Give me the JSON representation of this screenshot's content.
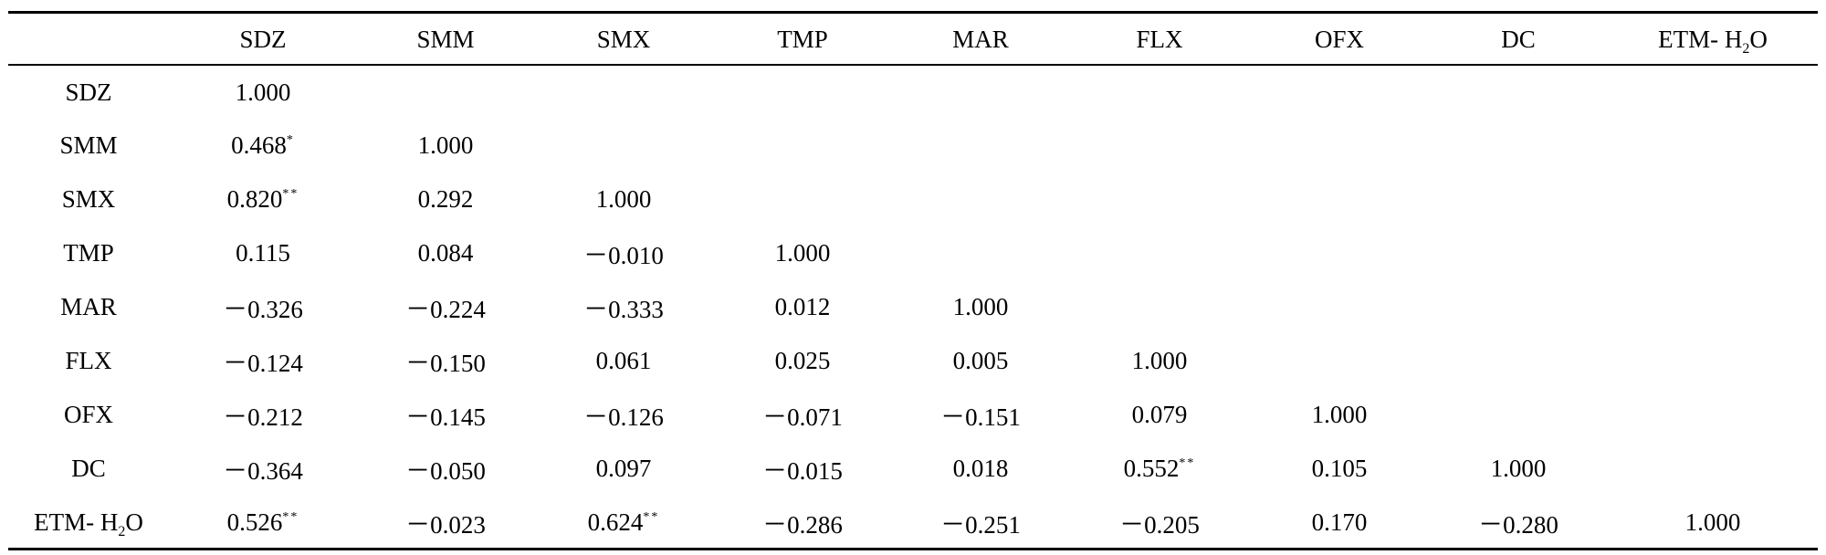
{
  "table": {
    "corner": "",
    "columns": [
      {
        "label": "SDZ",
        "sub": "",
        "tail": ""
      },
      {
        "label": "SMM",
        "sub": "",
        "tail": ""
      },
      {
        "label": "SMX",
        "sub": "",
        "tail": ""
      },
      {
        "label": "TMP",
        "sub": "",
        "tail": ""
      },
      {
        "label": "MAR",
        "sub": "",
        "tail": ""
      },
      {
        "label": "FLX",
        "sub": "",
        "tail": ""
      },
      {
        "label": "OFX",
        "sub": "",
        "tail": ""
      },
      {
        "label": "DC",
        "sub": "",
        "tail": ""
      },
      {
        "label": "ETM-   H",
        "sub": "2",
        "tail": "O"
      }
    ],
    "rows": [
      {
        "label": {
          "label": "SDZ",
          "sub": "",
          "tail": ""
        },
        "cells": [
          {
            "v": "1.000",
            "s": ""
          },
          {
            "v": "",
            "s": ""
          },
          {
            "v": "",
            "s": ""
          },
          {
            "v": "",
            "s": ""
          },
          {
            "v": "",
            "s": ""
          },
          {
            "v": "",
            "s": ""
          },
          {
            "v": "",
            "s": ""
          },
          {
            "v": "",
            "s": ""
          },
          {
            "v": "",
            "s": ""
          }
        ]
      },
      {
        "label": {
          "label": "SMM",
          "sub": "",
          "tail": ""
        },
        "cells": [
          {
            "v": "0.468",
            "s": "*"
          },
          {
            "v": "1.000",
            "s": ""
          },
          {
            "v": "",
            "s": ""
          },
          {
            "v": "",
            "s": ""
          },
          {
            "v": "",
            "s": ""
          },
          {
            "v": "",
            "s": ""
          },
          {
            "v": "",
            "s": ""
          },
          {
            "v": "",
            "s": ""
          },
          {
            "v": "",
            "s": ""
          }
        ]
      },
      {
        "label": {
          "label": "SMX",
          "sub": "",
          "tail": ""
        },
        "cells": [
          {
            "v": "0.820",
            "s": "**"
          },
          {
            "v": "0.292",
            "s": ""
          },
          {
            "v": "1.000",
            "s": ""
          },
          {
            "v": "",
            "s": ""
          },
          {
            "v": "",
            "s": ""
          },
          {
            "v": "",
            "s": ""
          },
          {
            "v": "",
            "s": ""
          },
          {
            "v": "",
            "s": ""
          },
          {
            "v": "",
            "s": ""
          }
        ]
      },
      {
        "label": {
          "label": "TMP",
          "sub": "",
          "tail": ""
        },
        "cells": [
          {
            "v": "0.115",
            "s": ""
          },
          {
            "v": "0.084",
            "s": ""
          },
          {
            "v": "－0.010",
            "s": ""
          },
          {
            "v": "1.000",
            "s": ""
          },
          {
            "v": "",
            "s": ""
          },
          {
            "v": "",
            "s": ""
          },
          {
            "v": "",
            "s": ""
          },
          {
            "v": "",
            "s": ""
          },
          {
            "v": "",
            "s": ""
          }
        ]
      },
      {
        "label": {
          "label": "MAR",
          "sub": "",
          "tail": ""
        },
        "cells": [
          {
            "v": "－0.326",
            "s": ""
          },
          {
            "v": "－0.224",
            "s": ""
          },
          {
            "v": "－0.333",
            "s": ""
          },
          {
            "v": "0.012",
            "s": ""
          },
          {
            "v": "1.000",
            "s": ""
          },
          {
            "v": "",
            "s": ""
          },
          {
            "v": "",
            "s": ""
          },
          {
            "v": "",
            "s": ""
          },
          {
            "v": "",
            "s": ""
          }
        ]
      },
      {
        "label": {
          "label": "FLX",
          "sub": "",
          "tail": ""
        },
        "cells": [
          {
            "v": "－0.124",
            "s": ""
          },
          {
            "v": "－0.150",
            "s": ""
          },
          {
            "v": "0.061",
            "s": ""
          },
          {
            "v": "0.025",
            "s": ""
          },
          {
            "v": "0.005",
            "s": ""
          },
          {
            "v": "1.000",
            "s": ""
          },
          {
            "v": "",
            "s": ""
          },
          {
            "v": "",
            "s": ""
          },
          {
            "v": "",
            "s": ""
          }
        ]
      },
      {
        "label": {
          "label": "OFX",
          "sub": "",
          "tail": ""
        },
        "cells": [
          {
            "v": "－0.212",
            "s": ""
          },
          {
            "v": "－0.145",
            "s": ""
          },
          {
            "v": "－0.126",
            "s": ""
          },
          {
            "v": "－0.071",
            "s": ""
          },
          {
            "v": "－0.151",
            "s": ""
          },
          {
            "v": "0.079",
            "s": ""
          },
          {
            "v": "1.000",
            "s": ""
          },
          {
            "v": "",
            "s": ""
          },
          {
            "v": "",
            "s": ""
          }
        ]
      },
      {
        "label": {
          "label": "DC",
          "sub": "",
          "tail": ""
        },
        "cells": [
          {
            "v": "－0.364",
            "s": ""
          },
          {
            "v": "－0.050",
            "s": ""
          },
          {
            "v": "0.097",
            "s": ""
          },
          {
            "v": "－0.015",
            "s": ""
          },
          {
            "v": "0.018",
            "s": ""
          },
          {
            "v": "0.552",
            "s": "**"
          },
          {
            "v": "0.105",
            "s": ""
          },
          {
            "v": "1.000",
            "s": ""
          },
          {
            "v": "",
            "s": ""
          }
        ]
      },
      {
        "label": {
          "label": "ETM-   H",
          "sub": "2",
          "tail": "O"
        },
        "cells": [
          {
            "v": "0.526",
            "s": "**"
          },
          {
            "v": "－0.023",
            "s": ""
          },
          {
            "v": "0.624",
            "s": "**"
          },
          {
            "v": "－0.286",
            "s": ""
          },
          {
            "v": "－0.251",
            "s": ""
          },
          {
            "v": "－0.205",
            "s": ""
          },
          {
            "v": "0.170",
            "s": ""
          },
          {
            "v": "－0.280",
            "s": ""
          },
          {
            "v": "1.000",
            "s": ""
          }
        ]
      }
    ]
  }
}
